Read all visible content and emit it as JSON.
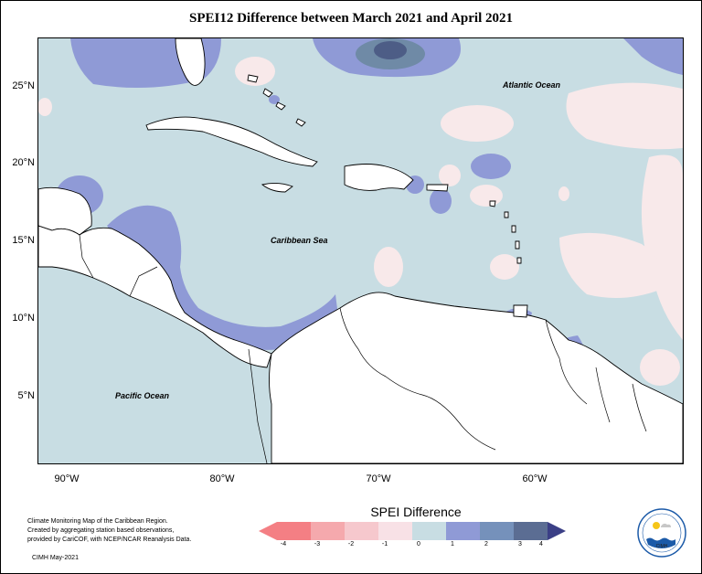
{
  "title": "SPEI12 Difference between March 2021 and April 2021",
  "map": {
    "lat_labels": [
      "25°N",
      "20°N",
      "15°N",
      "10°N",
      "5°N"
    ],
    "lon_labels": [
      "90°W",
      "80°W",
      "70°W",
      "60°W"
    ],
    "atlantic_label": "Atlantic Ocean",
    "caribbean_label": "Caribbean Sea",
    "pacific_label": "Pacific Ocean",
    "colors": {
      "neutral_sea": "#c8dde3",
      "positive_1": "#8f9ad6",
      "positive_2": "#6f8aa6",
      "positive_3": "#4d5d86",
      "negative_light": "#f8e9ea",
      "land": "#ffffff"
    }
  },
  "credits": {
    "line1": "Climate Monitoring Map of the Caribbean Region.",
    "line2": "Created by aggregating station based observations,",
    "line3": "provided by CariCOF, with NCEP/NCAR Reanalysis Data.",
    "date": "CIMH May-2021"
  },
  "legend": {
    "title": "SPEI Difference",
    "ticks": [
      "-4",
      "-3",
      "-2",
      "-1",
      "0",
      "1",
      "2",
      "3",
      "4"
    ],
    "colors": [
      "#f47f84",
      "#f5a9ad",
      "#f6c8cd",
      "#f8e1e6",
      "#c8dde3",
      "#8f9ad6",
      "#7591bb",
      "#5b6d93",
      "#3b3f86"
    ]
  },
  "logo": {
    "text": "CIMH"
  }
}
